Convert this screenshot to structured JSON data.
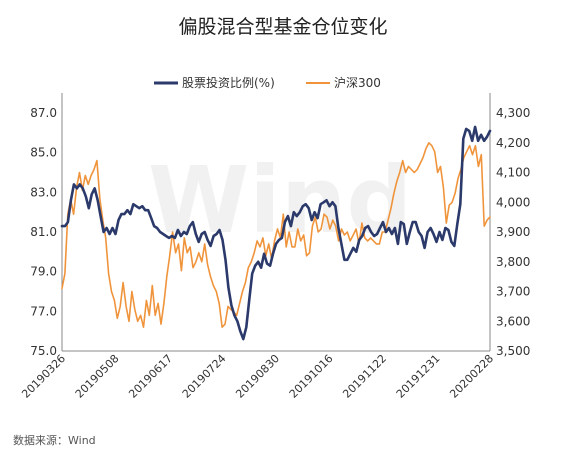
{
  "chart_data": {
    "type": "line",
    "title": "偏股混合型基金仓位变化",
    "watermark": "Wind",
    "source": "数据来源：Wind",
    "legend_position": "top",
    "colors": {
      "left_series": "#2b3a6b",
      "right_series": "#f0943c",
      "axis": "#888888"
    },
    "x_tick_labels": [
      "20190326",
      "20190508",
      "20190617",
      "20190724",
      "20190830",
      "20191016",
      "20191122",
      "20191231",
      "20200228"
    ],
    "y_left": {
      "min": 75.0,
      "max": 87.0,
      "ticks": [
        "75.0",
        "77.0",
        "79.0",
        "81.0",
        "83.0",
        "85.0",
        "87.0"
      ]
    },
    "y_right": {
      "min": 3500,
      "max": 4300,
      "ticks": [
        "3,500",
        "3,600",
        "3,700",
        "3,800",
        "3,900",
        "4,000",
        "4,100",
        "4,200",
        "4,300"
      ]
    },
    "series": [
      {
        "name": "股票投资比例(%)",
        "axis": "left",
        "values": [
          81.3,
          81.3,
          81.5,
          82.6,
          83.4,
          83.2,
          83.4,
          83.2,
          82.8,
          82.2,
          82.9,
          83.2,
          82.6,
          81.8,
          81.0,
          81.2,
          80.9,
          81.2,
          80.9,
          81.6,
          81.9,
          81.9,
          82.1,
          81.9,
          82.4,
          82.3,
          82.2,
          82.3,
          82.1,
          82.1,
          81.7,
          81.3,
          81.2,
          81.0,
          80.9,
          80.8,
          80.7,
          80.8,
          80.7,
          81.1,
          80.8,
          81.0,
          80.9,
          81.3,
          81.5,
          80.9,
          80.5,
          80.9,
          81.0,
          80.6,
          80.3,
          80.8,
          80.9,
          81.1,
          80.6,
          79.6,
          78.2,
          77.3,
          76.8,
          76.5,
          76.0,
          75.6,
          76.2,
          77.6,
          78.9,
          79.3,
          79.5,
          79.2,
          79.9,
          79.4,
          79.3,
          79.9,
          80.4,
          80.6,
          80.7,
          81.5,
          81.8,
          81.3,
          82.0,
          81.8,
          82.0,
          82.3,
          82.4,
          82.2,
          81.6,
          82.0,
          81.7,
          82.4,
          82.5,
          82.6,
          82.3,
          82.5,
          82.3,
          81.2,
          80.4,
          79.6,
          79.6,
          79.9,
          80.2,
          80.0,
          80.6,
          80.8,
          81.2,
          81.3,
          81.0,
          80.8,
          80.9,
          81.2,
          81.5,
          81.0,
          81.2,
          80.9,
          81.2,
          80.4,
          81.5,
          81.4,
          80.4,
          81.0,
          81.5,
          81.5,
          81.0,
          80.8,
          80.2,
          81.0,
          81.2,
          80.9,
          80.5,
          81.0,
          80.6,
          81.2,
          81.1,
          80.5,
          80.3,
          81.4,
          82.4,
          85.7,
          86.2,
          86.1,
          85.6,
          86.3,
          85.6,
          85.9,
          85.6,
          85.8,
          86.1
        ]
      },
      {
        "name": "沪深300",
        "axis": "right",
        "values": [
          3710,
          3760,
          3960,
          4010,
          3960,
          4050,
          4100,
          4040,
          4090,
          4060,
          4090,
          4110,
          4140,
          4010,
          3940,
          3880,
          3760,
          3700,
          3670,
          3610,
          3650,
          3730,
          3650,
          3600,
          3700,
          3640,
          3600,
          3620,
          3580,
          3670,
          3620,
          3720,
          3620,
          3660,
          3590,
          3660,
          3750,
          3820,
          3900,
          3830,
          3860,
          3770,
          3880,
          3830,
          3850,
          3780,
          3800,
          3830,
          3800,
          3860,
          3790,
          3750,
          3720,
          3700,
          3660,
          3580,
          3590,
          3650,
          3640,
          3630,
          3620,
          3660,
          3700,
          3730,
          3780,
          3800,
          3830,
          3870,
          3850,
          3880,
          3820,
          3860,
          3810,
          3870,
          3910,
          3880,
          3960,
          3850,
          3900,
          3850,
          3850,
          3910,
          3870,
          3890,
          3820,
          3830,
          3920,
          3950,
          3900,
          3910,
          3960,
          3950,
          3910,
          3940,
          3920,
          3870,
          3910,
          3890,
          3900,
          3870,
          3890,
          3910,
          3860,
          3930,
          3880,
          3870,
          3880,
          3870,
          3860,
          3860,
          3900,
          3900,
          3940,
          3980,
          4030,
          4070,
          4100,
          4140,
          4100,
          4120,
          4110,
          4100,
          4110,
          4130,
          4150,
          4180,
          4200,
          4190,
          4170,
          4100,
          4120,
          4050,
          3930,
          3990,
          4000,
          4030,
          4080,
          4110,
          4150,
          4170,
          4190,
          4160,
          4190,
          4120,
          4160,
          3920,
          3940,
          3950
        ]
      }
    ]
  }
}
